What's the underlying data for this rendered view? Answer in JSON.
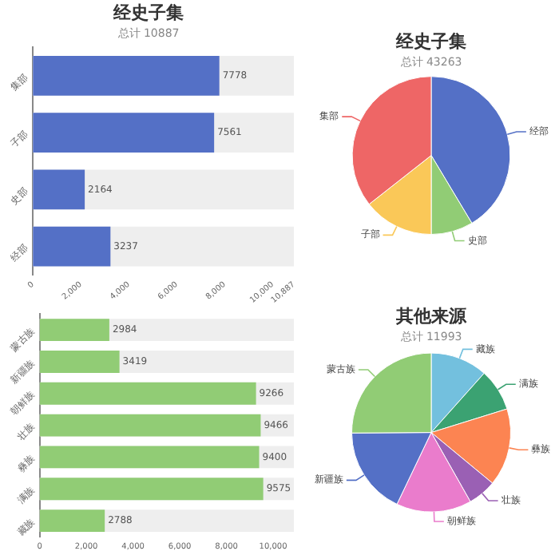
{
  "chart_data": [
    {
      "type": "bar",
      "orientation": "horizontal",
      "title": "经史子集",
      "subtitle": "总计 10887",
      "categories": [
        "集部",
        "子部",
        "史部",
        "经部"
      ],
      "values": [
        7778,
        7561,
        2164,
        3237
      ],
      "color": "#5470c6",
      "xlim": [
        0,
        10887
      ],
      "xticks": [
        0,
        {
          "value": 2000,
          "label": "2,000"
        },
        {
          "value": 4000,
          "label": "4,000"
        },
        {
          "value": 6000,
          "label": "6,000"
        },
        {
          "value": 8000,
          "label": "8,000"
        },
        {
          "value": 10000,
          "label": "10,000"
        },
        {
          "value": 10887,
          "label": "10,887"
        }
      ],
      "grid": false,
      "data_labels": true,
      "legend": false
    },
    {
      "type": "pie",
      "title": "经史子集",
      "subtitle": "总计 43263",
      "categories": [
        "经部",
        "史部",
        "子部",
        "集部"
      ],
      "values": [
        41.4,
        8.6,
        14.4,
        35.6
      ],
      "colors": [
        "#5470c6",
        "#91cc75",
        "#fac858",
        "#ee6666"
      ],
      "legend": false
    },
    {
      "type": "bar",
      "orientation": "horizontal",
      "categories": [
        "蒙古族",
        "新疆族",
        "朝鲜族",
        "壮族",
        "彝族",
        "满族",
        "藏族"
      ],
      "values": [
        2984,
        3419,
        9266,
        9466,
        9400,
        9575,
        2788
      ],
      "color": "#91cc75",
      "xlim": [
        0,
        10887
      ],
      "xticks": [
        0,
        {
          "value": 2000,
          "label": "2,000"
        },
        {
          "value": 4000,
          "label": "4,000"
        },
        {
          "value": 6000,
          "label": "6,000"
        },
        {
          "value": 8000,
          "label": "8,000"
        },
        {
          "value": 10000,
          "label": "10,000"
        }
      ],
      "grid": false,
      "data_labels": true,
      "legend": false
    },
    {
      "type": "pie",
      "title": "其他来源",
      "subtitle": "总计 11993",
      "categories": [
        "藏族",
        "满族",
        "彝族",
        "壮族",
        "朝鲜族",
        "新疆族",
        "蒙古族"
      ],
      "values": [
        11.6,
        8.6,
        15.8,
        5.8,
        15.3,
        17.8,
        25.1
      ],
      "colors": [
        "#73c0de",
        "#3ba272",
        "#fc8452",
        "#9a60b4",
        "#ea7ccc",
        "#5470c6",
        "#91cc75"
      ],
      "legend": false
    }
  ]
}
